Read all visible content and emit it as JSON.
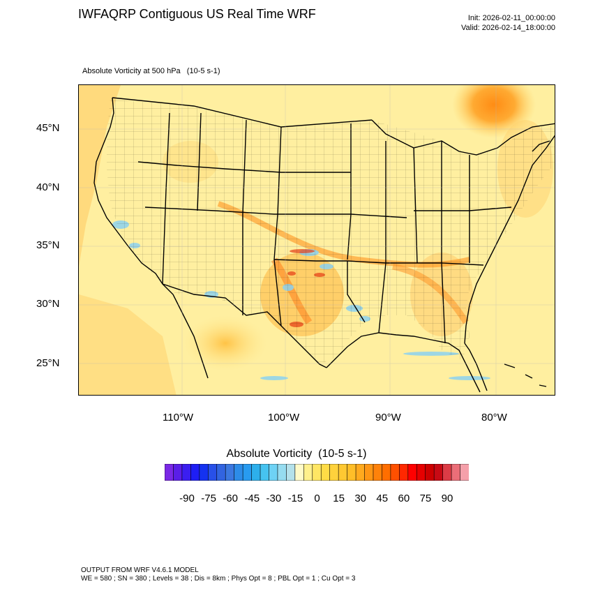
{
  "header": {
    "title": "IWFAQRP Contiguous US Real Time WRF",
    "init": "Init: 2026-02-11_00:00:00",
    "valid": "Valid: 2026-02-14_18:00:00"
  },
  "field_label": "Absolute Vorticity at 500 hPa   (10-5 s-1)",
  "map": {
    "lat_labels": [
      "45°N",
      "40°N",
      "35°N",
      "30°N",
      "25°N"
    ],
    "lon_labels": [
      "110°W",
      "100°W",
      "90°W",
      "80°W"
    ]
  },
  "legend": {
    "title": "Absolute Vorticity  (10-5 s-1)",
    "tick_labels": [
      "-90",
      "-75",
      "-60",
      "-45",
      "-30",
      "-15",
      "0",
      "15",
      "30",
      "45",
      "60",
      "75",
      "90"
    ],
    "colors": [
      "#7a28e6",
      "#5a1ee8",
      "#3b1ef0",
      "#1e1ef5",
      "#1432f0",
      "#2850e8",
      "#3264e0",
      "#3c78e0",
      "#2d8ce8",
      "#289bf0",
      "#2dafeb",
      "#46c3f0",
      "#6ed2f5",
      "#96dcf0",
      "#b4e1eb",
      "#fffac8",
      "#fff08c",
      "#ffe664",
      "#ffdc46",
      "#ffd23c",
      "#ffc832",
      "#ffbe28",
      "#ffaa1e",
      "#ff9614",
      "#ff820a",
      "#ff6e00",
      "#ff5000",
      "#ff2800",
      "#ff0000",
      "#e60000",
      "#cd0000",
      "#c80a14",
      "#dc3c46",
      "#eb6e78",
      "#f5a0aa"
    ]
  },
  "footer": {
    "line1": "OUTPUT FROM WRF V4.6.1 MODEL",
    "line2": "WE = 580 ; SN = 380 ; Levels = 38 ; Dis = 8km ; Phys Opt = 8 ; PBL Opt = 1 ; Cu Opt = 3"
  }
}
